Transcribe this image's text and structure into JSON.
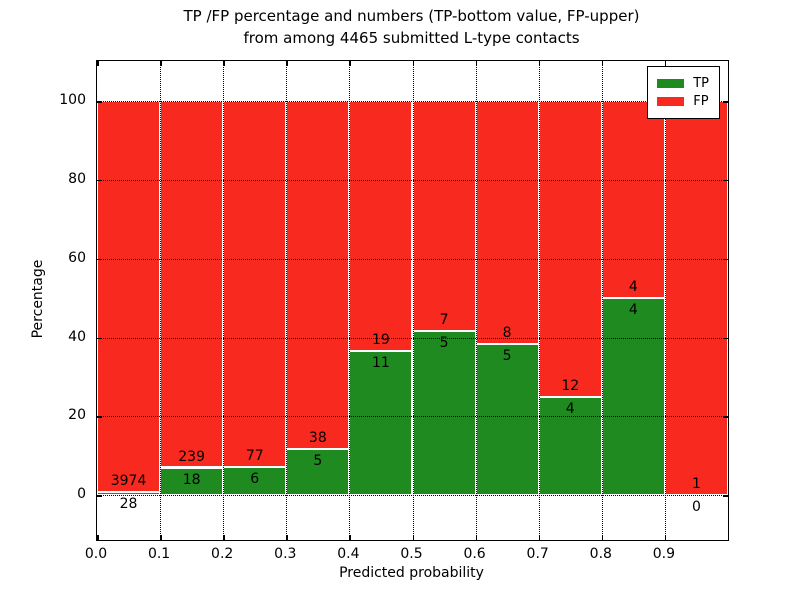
{
  "figure": {
    "title_line1": "TP /FP percentage and numbers (TP-bottom value, FP-upper)",
    "title_line2": "from among 4465 submitted L-type contacts"
  },
  "chart_data": {
    "type": "bar",
    "stacked": true,
    "normalized_to_percent": true,
    "title": "TP /FP percentage and numbers (TP-bottom value, FP-upper) from among 4465 submitted L-type contacts",
    "xlabel": "Predicted probability",
    "ylabel": "Percentage",
    "total_submitted": 4465,
    "bins_start": [
      0.0,
      0.1,
      0.2,
      0.3,
      0.4,
      0.5,
      0.6,
      0.7,
      0.8,
      0.9
    ],
    "bin_width": 0.1,
    "series": [
      {
        "name": "TP",
        "color": "#1f8a1f",
        "counts": [
          28,
          18,
          6,
          5,
          11,
          5,
          5,
          4,
          4,
          0
        ]
      },
      {
        "name": "FP",
        "color": "#f8291e",
        "counts": [
          3974,
          239,
          77,
          38,
          19,
          7,
          8,
          12,
          4,
          1
        ]
      }
    ],
    "tp_percent_of_bin": [
      0.7,
      7.0,
      7.23,
      11.63,
      36.67,
      41.67,
      38.46,
      25.0,
      50.0,
      0.0
    ],
    "x_tick_labels": [
      "0.0",
      "0.1",
      "0.2",
      "0.3",
      "0.4",
      "0.5",
      "0.6",
      "0.7",
      "0.8",
      "0.9"
    ],
    "y_ticks": [
      0,
      20,
      40,
      60,
      80,
      100
    ],
    "xlim": [
      0.0,
      1.0
    ],
    "ylim": [
      -11.4,
      110.2
    ],
    "grid": "dotted black, horizontal at y ticks and vertical at x ticks",
    "legend": {
      "position": "upper right",
      "entries": [
        {
          "label": "TP",
          "color": "#1f8a1f"
        },
        {
          "label": "FP",
          "color": "#f8291e"
        }
      ]
    }
  }
}
